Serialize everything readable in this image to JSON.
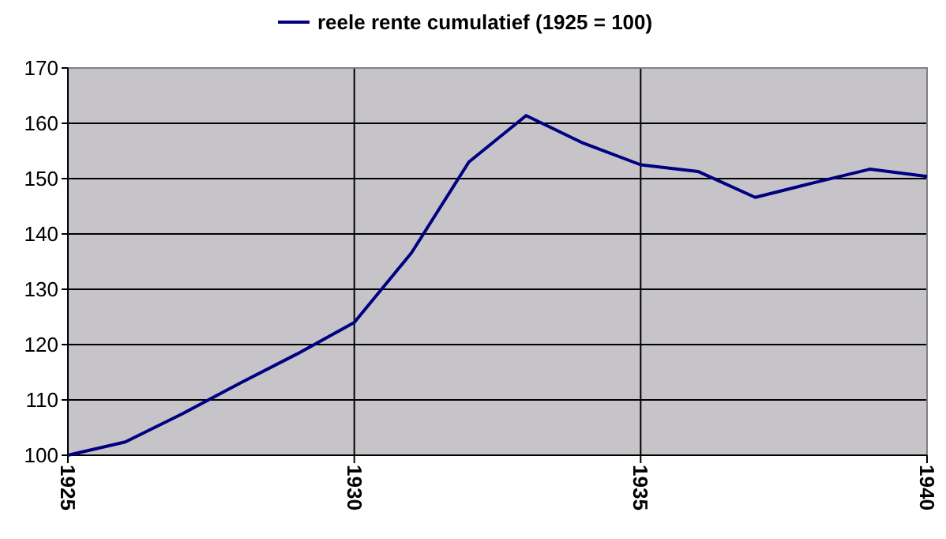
{
  "chart_data": {
    "type": "line",
    "x": [
      1925,
      1926,
      1927,
      1928,
      1929,
      1930,
      1931,
      1932,
      1933,
      1934,
      1935,
      1936,
      1937,
      1938,
      1939,
      1940
    ],
    "series": [
      {
        "name": "reele rente cumulatief (1925 = 100)",
        "color": "#000080",
        "values": [
          100,
          102.4,
          107.5,
          113,
          118.3,
          124,
          136.6,
          153,
          161.4,
          156.4,
          152.5,
          151.3,
          146.6,
          149.2,
          151.7,
          150.4
        ]
      }
    ],
    "xlim": [
      1925,
      1940
    ],
    "xticks": [
      1925,
      1930,
      1935,
      1940
    ],
    "ylim": [
      100,
      170
    ],
    "yticks": [
      100,
      110,
      120,
      130,
      140,
      150,
      160,
      170
    ],
    "grid": true,
    "legend": "top",
    "marker": "none",
    "line_style": "solid"
  }
}
